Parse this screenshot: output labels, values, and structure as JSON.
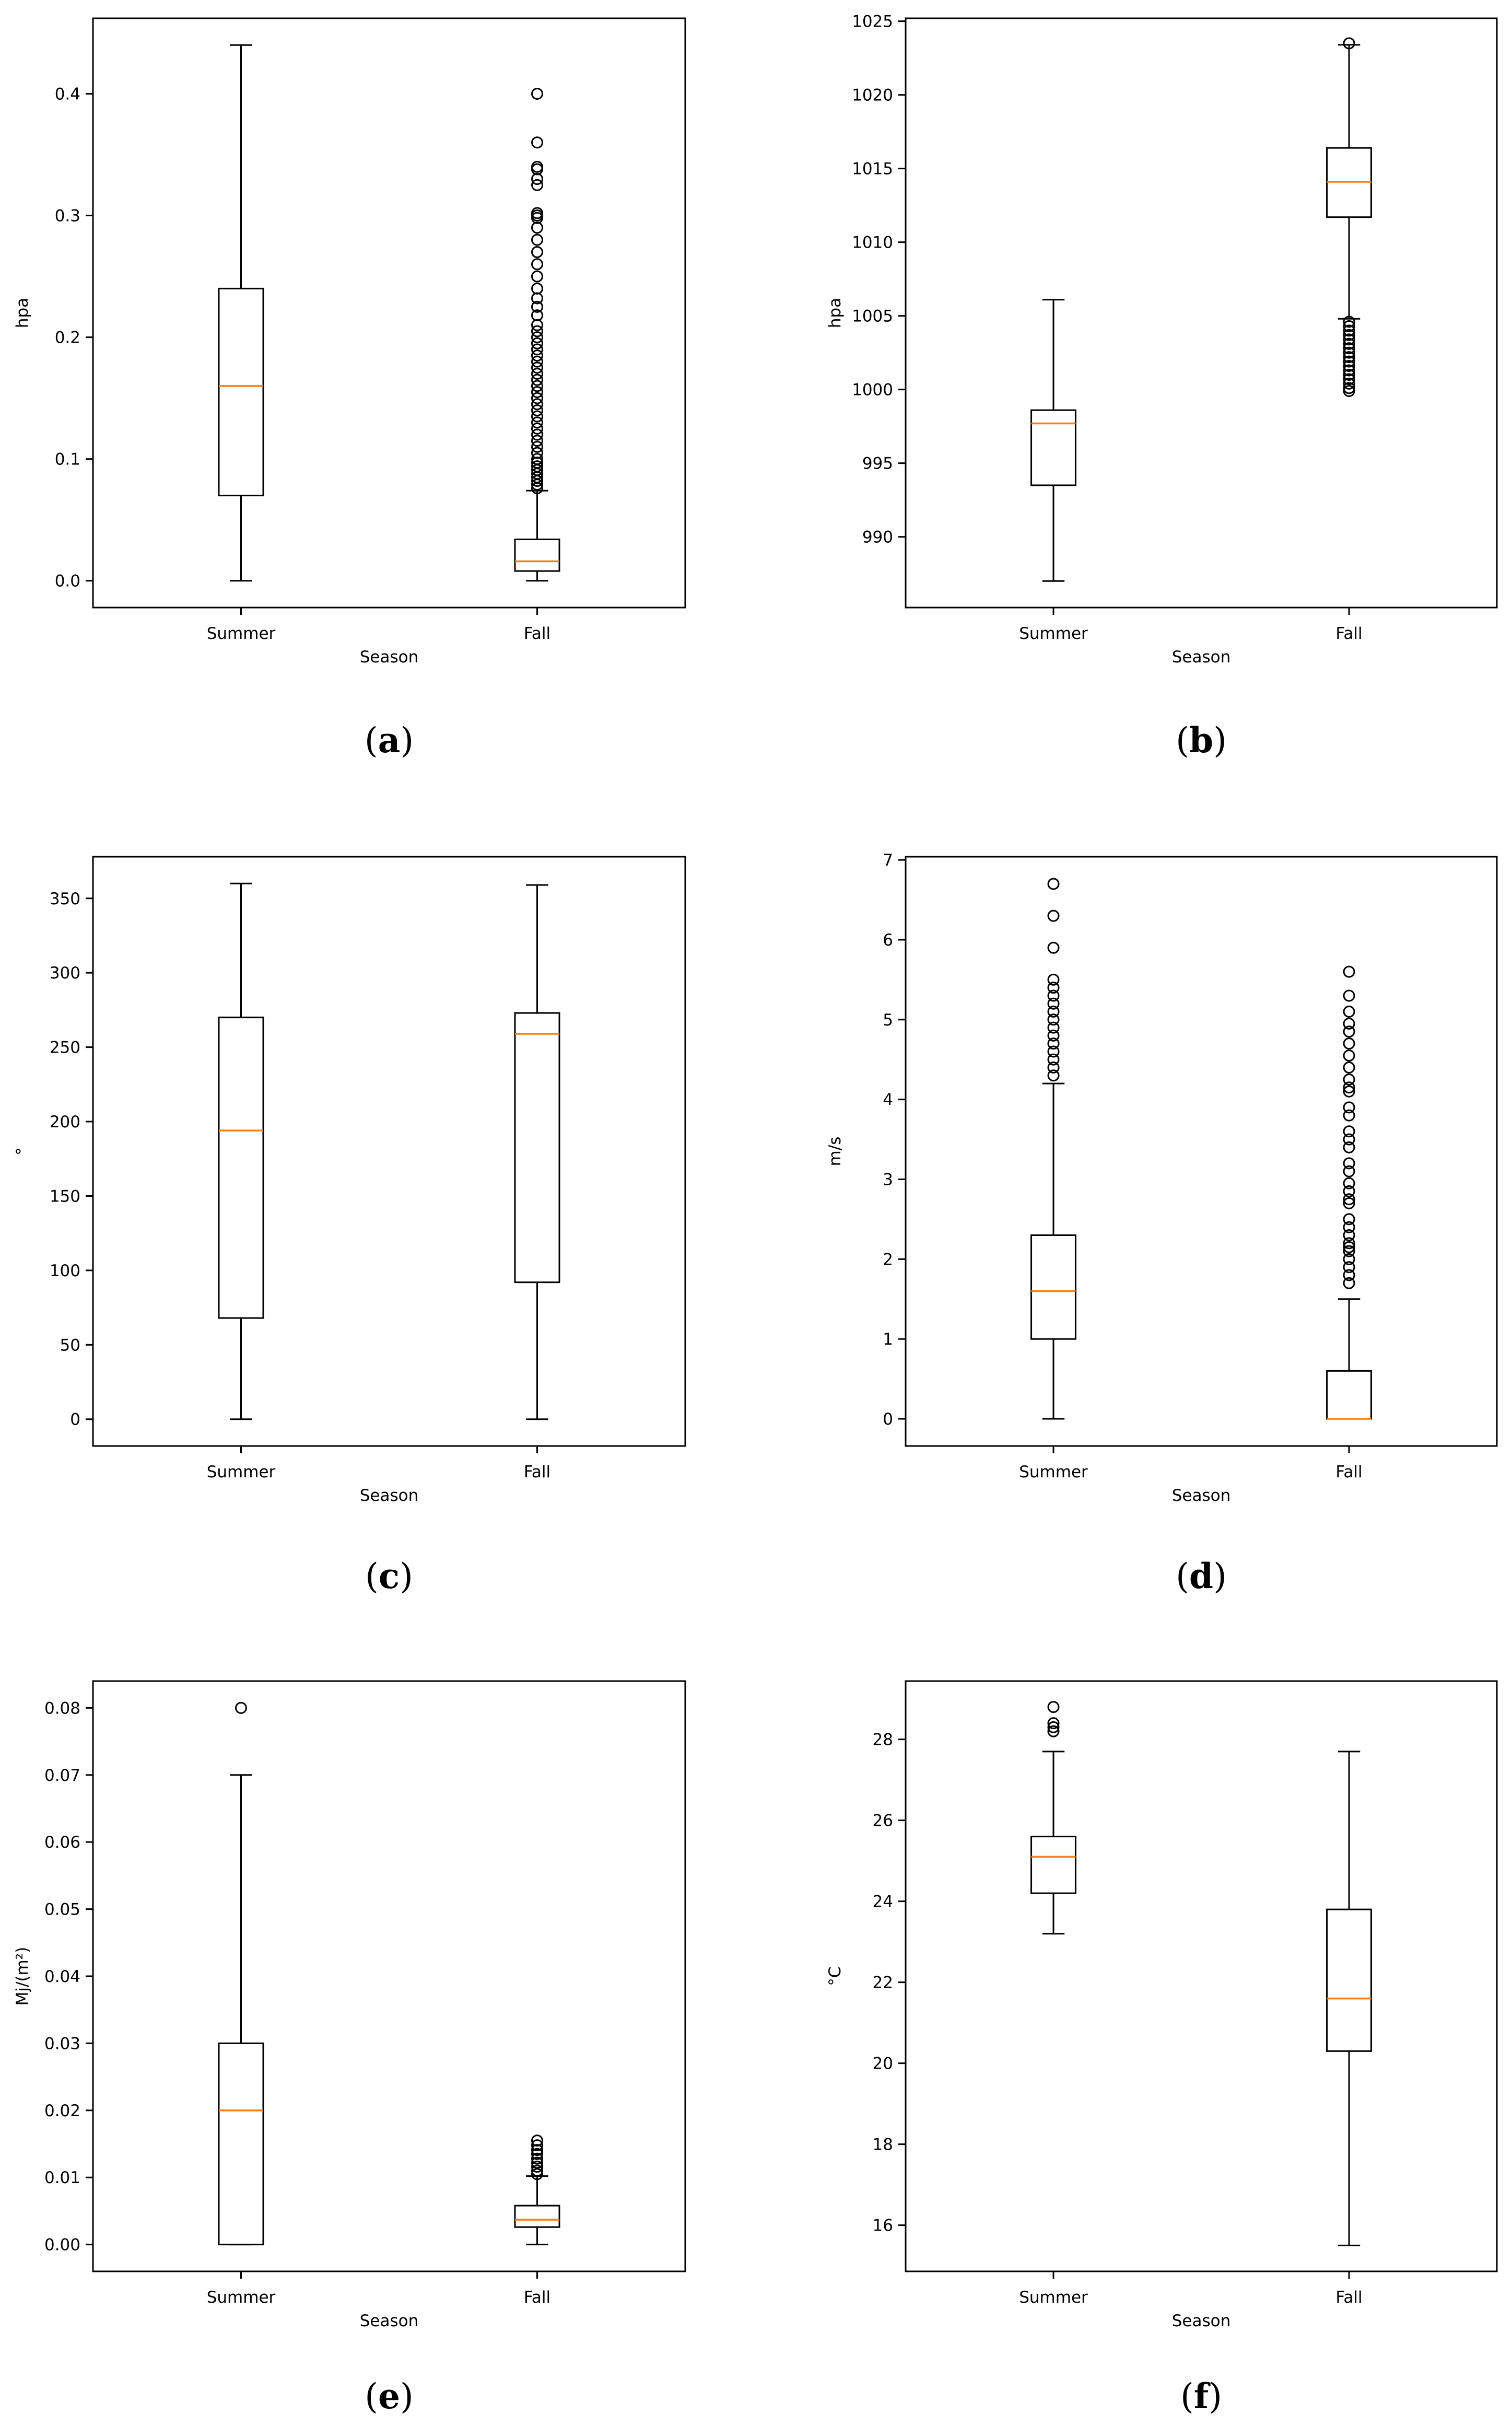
{
  "colors": {
    "box": "#000000",
    "median": "#ff7f0e",
    "background": "#ffffff"
  },
  "chart_data": [
    {
      "label": "a",
      "type": "boxplot",
      "xlabel": "Season",
      "ylabel": "hpa",
      "categories": [
        "Summer",
        "Fall"
      ],
      "ylim": [
        -0.022,
        0.462
      ],
      "yticks": [
        0.0,
        0.1,
        0.2,
        0.3,
        0.4
      ],
      "ytick_labels": [
        "0.0",
        "0.1",
        "0.2",
        "0.3",
        "0.4"
      ],
      "boxes": [
        {
          "category": "Summer",
          "whisker_low": 0.0,
          "q1": 0.07,
          "median": 0.16,
          "q3": 0.24,
          "whisker_high": 0.44,
          "outliers": []
        },
        {
          "category": "Fall",
          "whisker_low": 0.0,
          "q1": 0.008,
          "median": 0.016,
          "q3": 0.034,
          "whisker_high": 0.074,
          "outliers": [
            0.4,
            0.36,
            0.34,
            0.338,
            0.33,
            0.325,
            0.302,
            0.3,
            0.298,
            0.29,
            0.28,
            0.27,
            0.26,
            0.25,
            0.24,
            0.232,
            0.225,
            0.218,
            0.21,
            0.205,
            0.2,
            0.195,
            0.19,
            0.185,
            0.18,
            0.175,
            0.17,
            0.165,
            0.16,
            0.155,
            0.15,
            0.145,
            0.14,
            0.135,
            0.13,
            0.125,
            0.12,
            0.115,
            0.11,
            0.105,
            0.1,
            0.097,
            0.094,
            0.091,
            0.088,
            0.085,
            0.082,
            0.079,
            0.076
          ]
        }
      ]
    },
    {
      "label": "b",
      "type": "boxplot",
      "xlabel": "Season",
      "ylabel": "hpa",
      "categories": [
        "Summer",
        "Fall"
      ],
      "ylim": [
        985.2,
        1025.2
      ],
      "yticks": [
        990,
        995,
        1000,
        1005,
        1010,
        1015,
        1020,
        1025
      ],
      "ytick_labels": [
        "990",
        "995",
        "1000",
        "1005",
        "1010",
        "1015",
        "1020",
        "1025"
      ],
      "boxes": [
        {
          "category": "Summer",
          "whisker_low": 987.0,
          "q1": 993.5,
          "median": 997.7,
          "q3": 998.6,
          "whisker_high": 1006.1,
          "outliers": []
        },
        {
          "category": "Fall",
          "whisker_low": 1004.8,
          "q1": 1011.7,
          "median": 1014.1,
          "q3": 1016.4,
          "whisker_high": 1023.4,
          "outliers": [
            1023.5,
            1004.6,
            1004.3,
            1004.0,
            1003.7,
            1003.4,
            1003.1,
            1002.8,
            1002.5,
            1002.2,
            1001.9,
            1001.6,
            1001.3,
            1001.0,
            1000.7,
            1000.4,
            1000.1,
            999.9
          ]
        }
      ]
    },
    {
      "label": "c",
      "type": "boxplot",
      "xlabel": "Season",
      "ylabel": "°",
      "categories": [
        "Summer",
        "Fall"
      ],
      "ylim": [
        -18,
        378
      ],
      "yticks": [
        0,
        50,
        100,
        150,
        200,
        250,
        300,
        350
      ],
      "ytick_labels": [
        "0",
        "50",
        "100",
        "150",
        "200",
        "250",
        "300",
        "350"
      ],
      "boxes": [
        {
          "category": "Summer",
          "whisker_low": 0,
          "q1": 68,
          "median": 194,
          "q3": 270,
          "whisker_high": 360,
          "outliers": []
        },
        {
          "category": "Fall",
          "whisker_low": 0,
          "q1": 92,
          "median": 259,
          "q3": 273,
          "whisker_high": 359,
          "outliers": []
        }
      ]
    },
    {
      "label": "d",
      "type": "boxplot",
      "xlabel": "Season",
      "ylabel": "m/s",
      "categories": [
        "Summer",
        "Fall"
      ],
      "ylim": [
        -0.34,
        7.04
      ],
      "yticks": [
        0,
        1,
        2,
        3,
        4,
        5,
        6,
        7
      ],
      "ytick_labels": [
        "0",
        "1",
        "2",
        "3",
        "4",
        "5",
        "6",
        "7"
      ],
      "boxes": [
        {
          "category": "Summer",
          "whisker_low": 0.0,
          "q1": 1.0,
          "median": 1.6,
          "q3": 2.3,
          "whisker_high": 4.2,
          "outliers": [
            6.7,
            6.3,
            5.9,
            5.5,
            5.4,
            5.3,
            5.2,
            5.1,
            5.0,
            4.9,
            4.8,
            4.7,
            4.6,
            4.5,
            4.4,
            4.3
          ]
        },
        {
          "category": "Fall",
          "whisker_low": 0.0,
          "q1": 0.0,
          "median": 0.0,
          "q3": 0.6,
          "whisker_high": 1.5,
          "outliers": [
            5.6,
            5.3,
            5.1,
            4.95,
            4.85,
            4.7,
            4.55,
            4.4,
            4.25,
            4.15,
            4.1,
            3.9,
            3.8,
            3.6,
            3.5,
            3.4,
            3.2,
            3.1,
            2.95,
            2.85,
            2.75,
            2.7,
            2.5,
            2.4,
            2.3,
            2.2,
            2.15,
            2.1,
            2.0,
            1.9,
            1.8,
            1.7
          ]
        }
      ]
    },
    {
      "label": "e",
      "type": "boxplot",
      "xlabel": "Season",
      "ylabel": "Mj/(m²)",
      "categories": [
        "Summer",
        "Fall"
      ],
      "ylim": [
        -0.004,
        0.084
      ],
      "yticks": [
        0.0,
        0.01,
        0.02,
        0.03,
        0.04,
        0.05,
        0.06,
        0.07,
        0.08
      ],
      "ytick_labels": [
        "0.00",
        "0.01",
        "0.02",
        "0.03",
        "0.04",
        "0.05",
        "0.06",
        "0.07",
        "0.08"
      ],
      "boxes": [
        {
          "category": "Summer",
          "whisker_low": 0.0,
          "q1": 0.0,
          "median": 0.02,
          "q3": 0.03,
          "whisker_high": 0.07,
          "outliers": [
            0.08
          ]
        },
        {
          "category": "Fall",
          "whisker_low": 0.0,
          "q1": 0.0026,
          "median": 0.0037,
          "q3": 0.0058,
          "whisker_high": 0.0102,
          "outliers": [
            0.0155,
            0.0148,
            0.0141,
            0.0135,
            0.0128,
            0.0122,
            0.0116,
            0.011,
            0.0105
          ]
        }
      ]
    },
    {
      "label": "f",
      "type": "boxplot",
      "xlabel": "Season",
      "ylabel": "°C",
      "categories": [
        "Summer",
        "Fall"
      ],
      "ylim": [
        14.86,
        29.44
      ],
      "yticks": [
        16,
        18,
        20,
        22,
        24,
        26,
        28
      ],
      "ytick_labels": [
        "16",
        "18",
        "20",
        "22",
        "24",
        "26",
        "28"
      ],
      "boxes": [
        {
          "category": "Summer",
          "whisker_low": 23.2,
          "q1": 24.2,
          "median": 25.1,
          "q3": 25.6,
          "whisker_high": 27.7,
          "outliers": [
            28.8,
            28.4,
            28.3,
            28.2
          ]
        },
        {
          "category": "Fall",
          "whisker_low": 15.5,
          "q1": 20.3,
          "median": 21.6,
          "q3": 23.8,
          "whisker_high": 27.7,
          "outliers": []
        }
      ]
    }
  ]
}
